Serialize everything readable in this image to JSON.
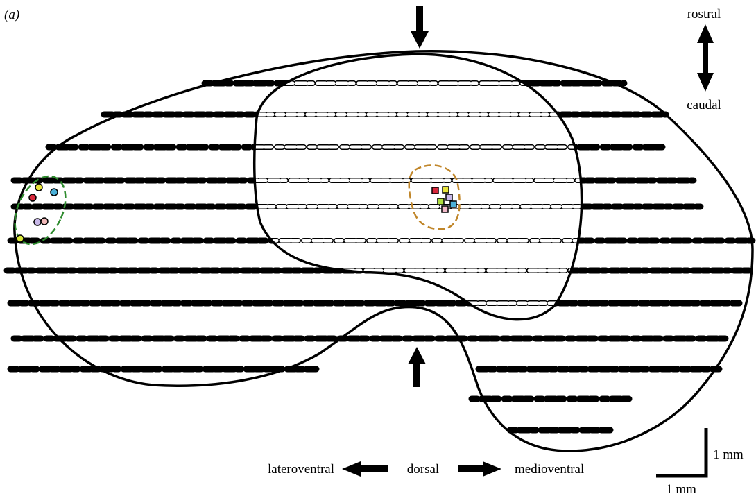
{
  "labels": {
    "panel": "(a)",
    "rostral": "rostral",
    "caudal": "caudal",
    "lateroventral": "lateroventral",
    "dorsal": "dorsal",
    "medioventral": "medioventral"
  },
  "scale_bar": {
    "vertical": "1 mm",
    "horizontal": "1 mm"
  }
}
